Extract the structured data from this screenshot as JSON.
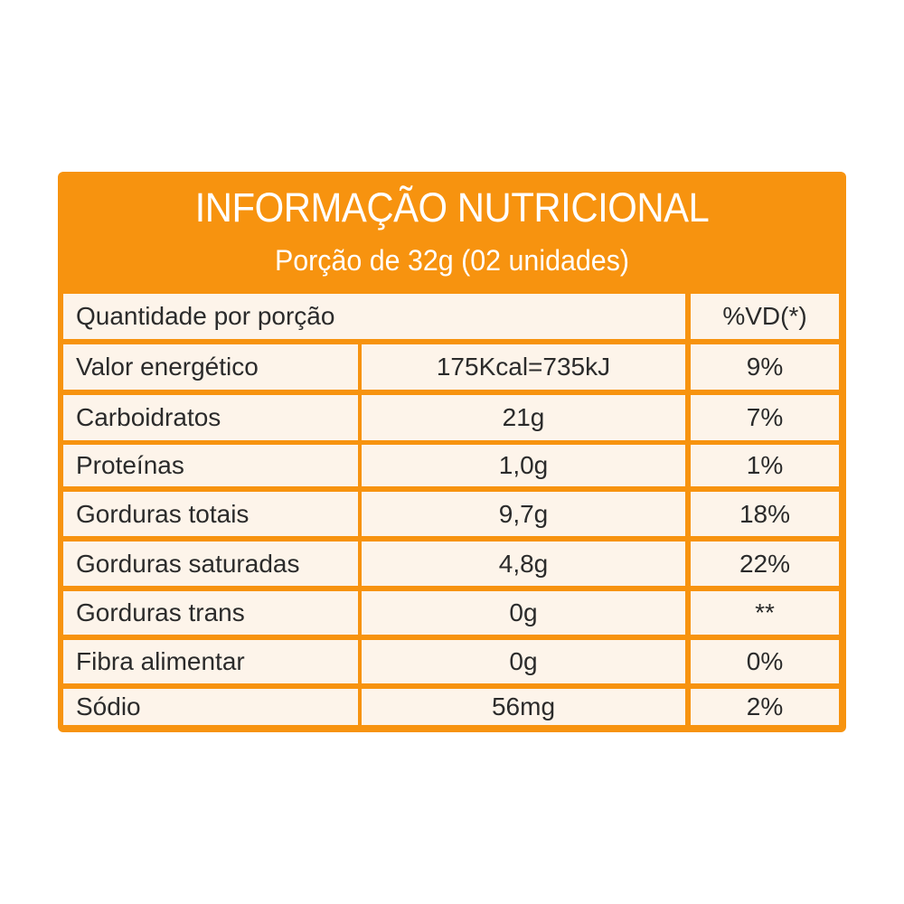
{
  "header": {
    "title": "INFORMAÇÃO NUTRICIONAL",
    "subtitle": "Porção de 32g (02 unidades)"
  },
  "table": {
    "head": {
      "quantity_label": "Quantidade por porção",
      "vd_label": "%VD(*)"
    },
    "rows": [
      {
        "name": "Valor energético",
        "value": "175Kcal=735kJ",
        "vd": "9%"
      },
      {
        "name": "Carboidratos",
        "value": "21g",
        "vd": "7%"
      },
      {
        "name": "Proteínas",
        "value": "1,0g",
        "vd": "1%"
      },
      {
        "name": "Gorduras totais",
        "value": "9,7g",
        "vd": "18%"
      },
      {
        "name": "Gorduras saturadas",
        "value": "4,8g",
        "vd": "22%"
      },
      {
        "name": "Gorduras trans",
        "value": "0g",
        "vd": "**"
      },
      {
        "name": "Fibra alimentar",
        "value": "0g",
        "vd": "0%"
      },
      {
        "name": "Sódio",
        "value": "56mg",
        "vd": "2%"
      }
    ]
  },
  "colors": {
    "frame": "#f7930f",
    "cell_background": "#fdf4ea",
    "text": "#2b2b2b",
    "header_text": "#ffffff"
  }
}
